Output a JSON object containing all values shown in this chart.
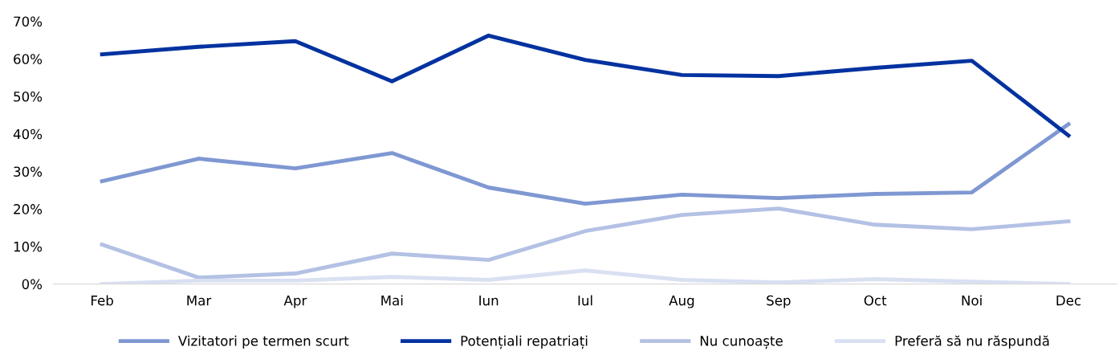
{
  "chart_data": {
    "type": "line",
    "categories": [
      "Feb",
      "Mar",
      "Apr",
      "Mai",
      "Iun",
      "Iul",
      "Aug",
      "Sep",
      "Oct",
      "Noi",
      "Dec"
    ],
    "ylim": [
      0,
      70
    ],
    "yticks": [
      {
        "value": 0,
        "label": "0%"
      },
      {
        "value": 10,
        "label": "10%"
      },
      {
        "value": 20,
        "label": "20%"
      },
      {
        "value": 30,
        "label": "30%"
      },
      {
        "value": 40,
        "label": "40%"
      },
      {
        "value": 50,
        "label": "50%"
      },
      {
        "value": 60,
        "label": "60%"
      },
      {
        "value": 70,
        "label": "70%"
      }
    ],
    "grid": false,
    "legend": "bottom",
    "marker": "none",
    "line_style": "solid",
    "series": [
      {
        "name": "Vizitatori pe termen scurt",
        "color": "#7f98d2",
        "values": [
          27.4,
          33.4,
          30.8,
          34.9,
          25.7,
          21.4,
          23.8,
          22.9,
          24.0,
          24.4,
          42.6
        ]
      },
      {
        "name": "Potențiali repatriați",
        "color": "#0332a0",
        "values": [
          61.2,
          63.2,
          64.7,
          54.0,
          66.2,
          59.7,
          55.7,
          55.4,
          57.6,
          59.5,
          39.6
        ]
      },
      {
        "name": "Nu cunoaște",
        "color": "#b3c1e4",
        "values": [
          10.5,
          1.7,
          2.8,
          8.1,
          6.4,
          14.1,
          18.4,
          20.1,
          15.8,
          14.6,
          16.7
        ]
      },
      {
        "name": "Preferă să nu răspundă",
        "color": "#d9e0f2",
        "values": [
          0,
          0.9,
          0.9,
          1.9,
          1.1,
          3.6,
          1.1,
          0.4,
          1.3,
          0.6,
          0
        ]
      }
    ]
  }
}
